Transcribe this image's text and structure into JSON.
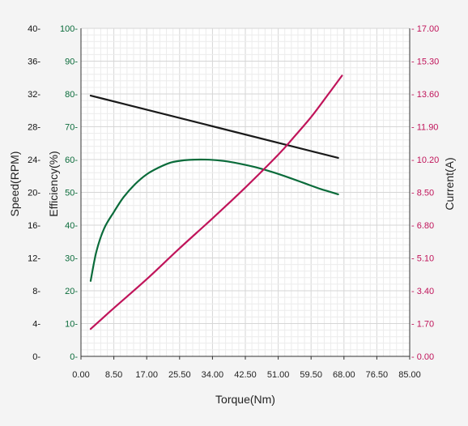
{
  "chart_data": {
    "type": "line",
    "xlabel": "Torque(Nm)",
    "x_ticks": [
      "0.00",
      "8.50",
      "17.00",
      "25.50",
      "34.00",
      "42.50",
      "51.00",
      "59.50",
      "68.00",
      "76.50",
      "85.00"
    ],
    "xlim": [
      0,
      85
    ],
    "y_axes": {
      "speed": {
        "label": "Speed(RPM)",
        "color": "#111111",
        "ticks": [
          "0-",
          "4-",
          "8-",
          "12-",
          "16-",
          "20-",
          "24-",
          "28-",
          "32-",
          "36-",
          "40-"
        ],
        "ylim": [
          0,
          40
        ]
      },
      "efficiency": {
        "label": "Efficiency(%)",
        "color": "#0a6b3a",
        "ticks": [
          "0-",
          "10-",
          "20-",
          "30-",
          "40-",
          "50-",
          "60-",
          "70-",
          "80-",
          "90-",
          "100-"
        ],
        "ylim": [
          0,
          100
        ]
      },
      "current": {
        "label": "Current(A)",
        "color": "#c0145a",
        "ticks": [
          "- 0.00",
          "- 1.70",
          "- 3.40",
          "- 5.10",
          "- 6.80",
          "- 8.50",
          "- 10.20",
          "- 11.90",
          "- 13.60",
          "- 15.30",
          "- 17.00"
        ],
        "ylim": [
          0,
          17
        ]
      }
    },
    "series": [
      {
        "axis": "speed",
        "color": "#1a1a1a",
        "x": [
          2.5,
          66.5
        ],
        "y": [
          31.8,
          24.2
        ]
      },
      {
        "axis": "efficiency",
        "color": "#0a6b3a",
        "x": [
          2.5,
          4,
          6,
          8.5,
          11,
          14,
          17,
          20,
          23,
          25.5,
          28,
          31,
          34,
          38,
          42,
          46,
          50,
          54,
          58,
          62,
          64,
          66.5
        ],
        "y": [
          23,
          32,
          39,
          44,
          48.5,
          52.5,
          55.5,
          57.5,
          59,
          59.6,
          59.9,
          60,
          59.9,
          59.4,
          58.5,
          57.4,
          56,
          54.4,
          52.7,
          51,
          50.3,
          49.4
        ]
      },
      {
        "axis": "current",
        "color": "#c0145a",
        "x": [
          2.5,
          8.5,
          17,
          25.5,
          34,
          42.5,
          51,
          55,
          59.5,
          64,
          67.5
        ],
        "y": [
          1.42,
          2.5,
          4.0,
          5.6,
          7.15,
          8.75,
          10.45,
          11.35,
          12.4,
          13.6,
          14.55
        ]
      }
    ]
  }
}
